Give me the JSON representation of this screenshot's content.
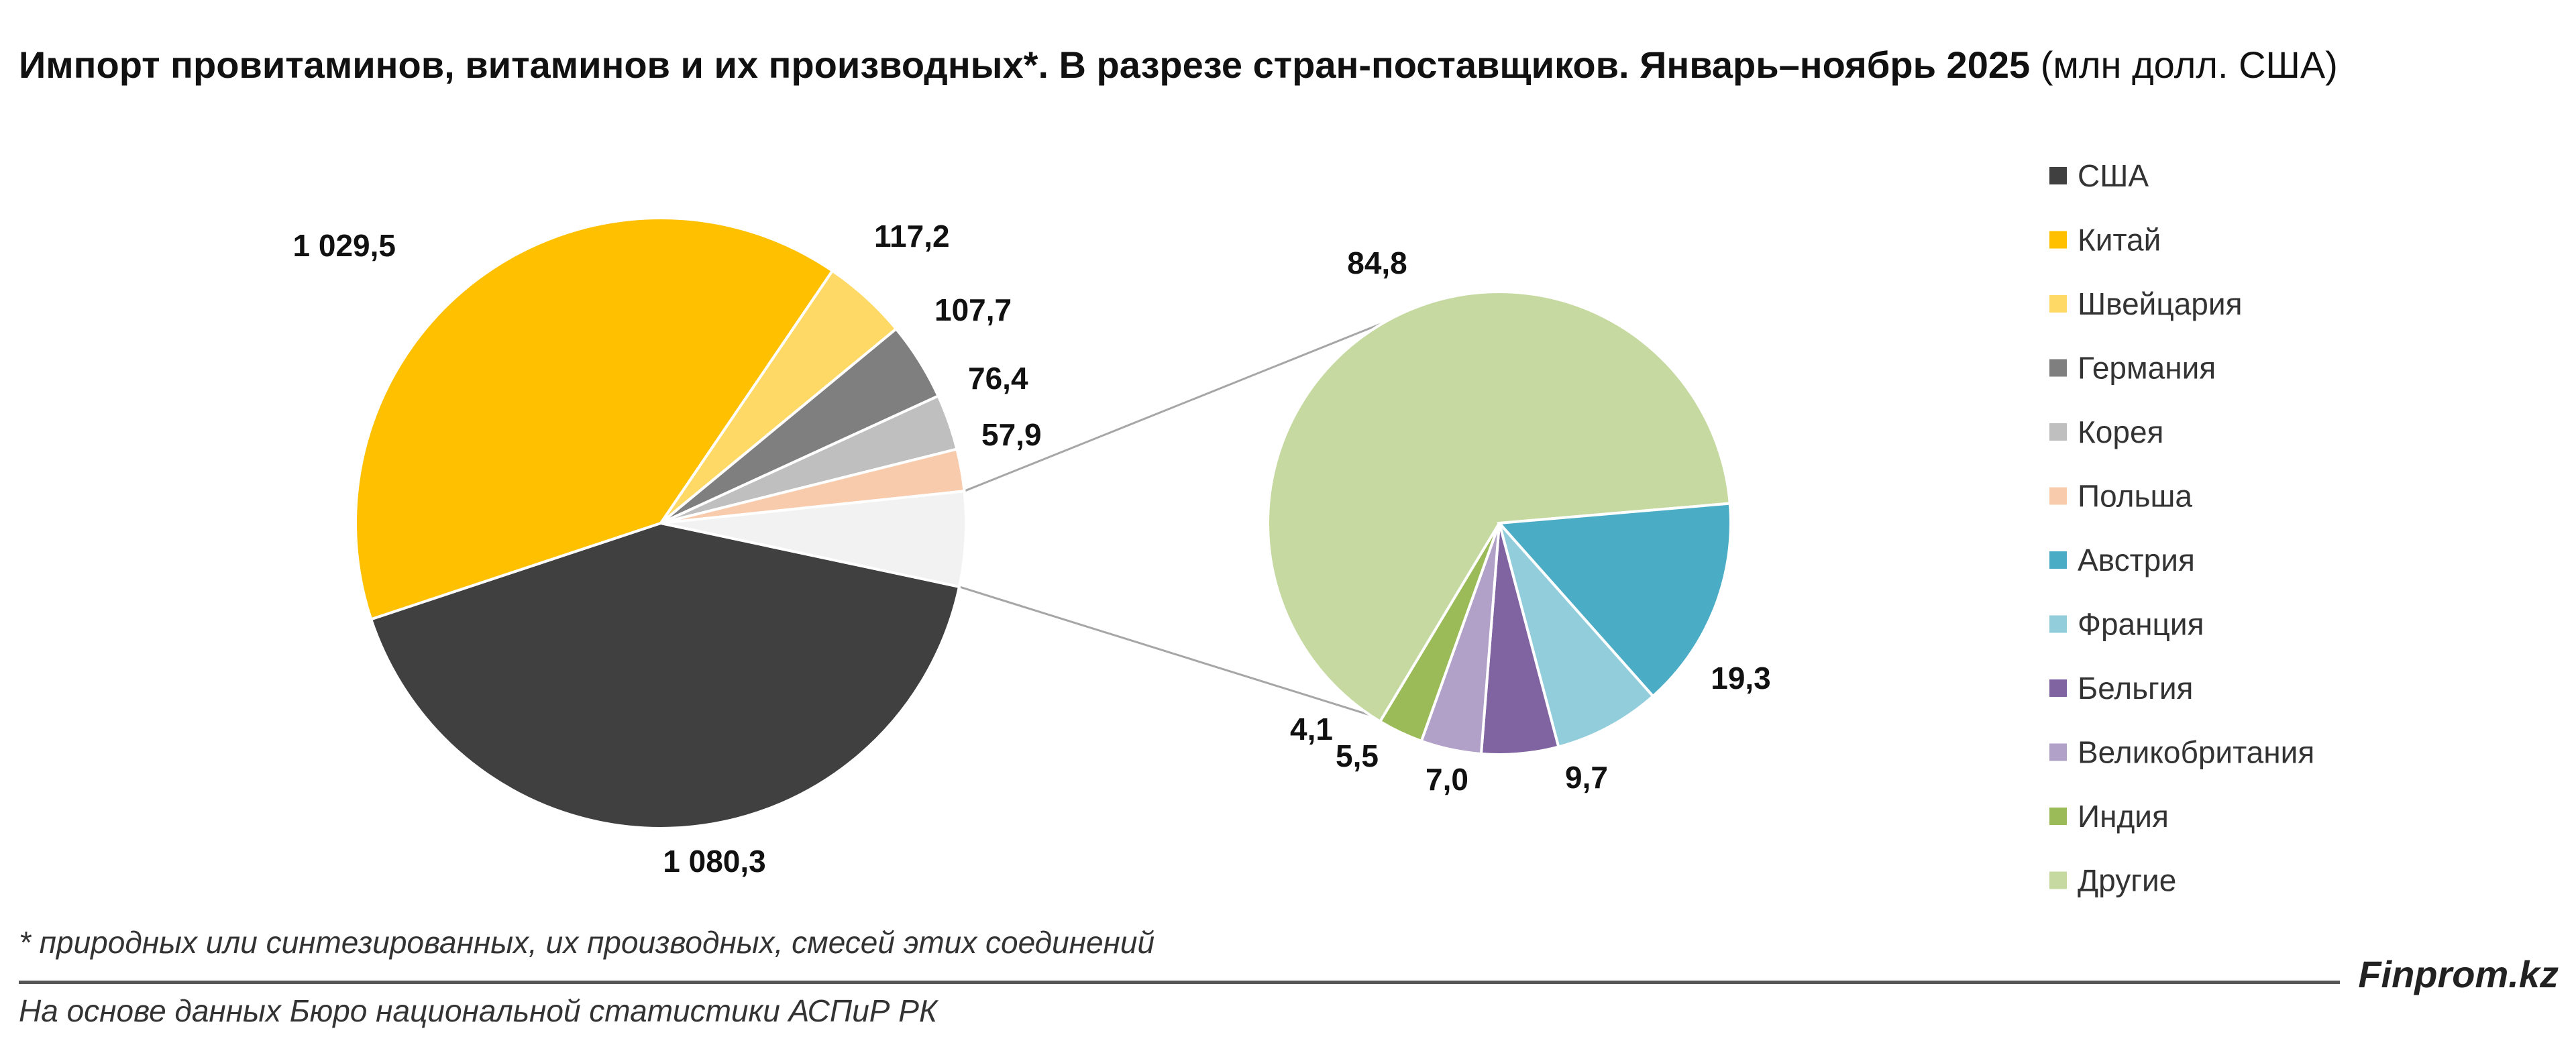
{
  "title": {
    "bold": "Импорт провитаминов, витаминов и их производных*. В разрезе стран-поставщиков. Январь–ноябрь 2025",
    "normal": " (млн долл. США)"
  },
  "footnote": "* природных или синтезированных, их производных, смесей этих соединений",
  "source": "На основе данных Бюро национальной статистики АСПиР РК",
  "brand": "Finprom.kz",
  "chart_data": {
    "type": "pie",
    "subtype": "pie-of-pie",
    "title": "Импорт провитаминов, витаминов и их производных*. В разрезе стран-поставщиков. Январь–ноябрь 2025 (млн долл. США)",
    "legend_position": "right",
    "main_pie": [
      {
        "name": "США",
        "value": 1080.3,
        "label": "1 080,3",
        "color": "#404040"
      },
      {
        "name": "Китай",
        "value": 1029.5,
        "label": "1 029,5",
        "color": "#FFC000"
      },
      {
        "name": "Швейцария",
        "value": 117.2,
        "label": "117,2",
        "color": "#FFD966"
      },
      {
        "name": "Германия",
        "value": 107.7,
        "label": "107,7",
        "color": "#7F7F7F"
      },
      {
        "name": "Корея",
        "value": 76.4,
        "label": "76,4",
        "color": "#BFBFBF"
      },
      {
        "name": "Польша",
        "value": 57.9,
        "label": "57,9",
        "color": "#F8CBAD"
      },
      {
        "name": "Прочие (вторичная диаграмма)",
        "value": 130.4,
        "label": "",
        "color": "#F2F2F2",
        "is_other_group": true
      }
    ],
    "secondary_pie": [
      {
        "name": "Другие",
        "value": 84.8,
        "label": "84,8",
        "color": "#C5D9A0"
      },
      {
        "name": "Австрия",
        "value": 19.3,
        "label": "19,3",
        "color": "#4BACC6"
      },
      {
        "name": "Франция",
        "value": 9.7,
        "label": "9,7",
        "color": "#92CDDC"
      },
      {
        "name": "Бельгия",
        "value": 7.0,
        "label": "7,0",
        "color": "#8064A2"
      },
      {
        "name": "Великобритания",
        "value": 5.5,
        "label": "5,5",
        "color": "#B1A0C7"
      },
      {
        "name": "Индия",
        "value": 4.1,
        "label": "4,1",
        "color": "#9BBB59"
      }
    ],
    "legend": [
      {
        "name": "США",
        "color": "#404040"
      },
      {
        "name": "Китай",
        "color": "#FFC000"
      },
      {
        "name": "Швейцария",
        "color": "#FFD966"
      },
      {
        "name": "Германия",
        "color": "#7F7F7F"
      },
      {
        "name": "Корея",
        "color": "#BFBFBF"
      },
      {
        "name": "Польша",
        "color": "#F8CBAD"
      },
      {
        "name": "Австрия",
        "color": "#4BACC6"
      },
      {
        "name": "Франция",
        "color": "#92CDDC"
      },
      {
        "name": "Бельгия",
        "color": "#8064A2"
      },
      {
        "name": "Великобритания",
        "color": "#B1A0C7"
      },
      {
        "name": "Индия",
        "color": "#9BBB59"
      },
      {
        "name": "Другие",
        "color": "#C5D9A0"
      }
    ]
  }
}
